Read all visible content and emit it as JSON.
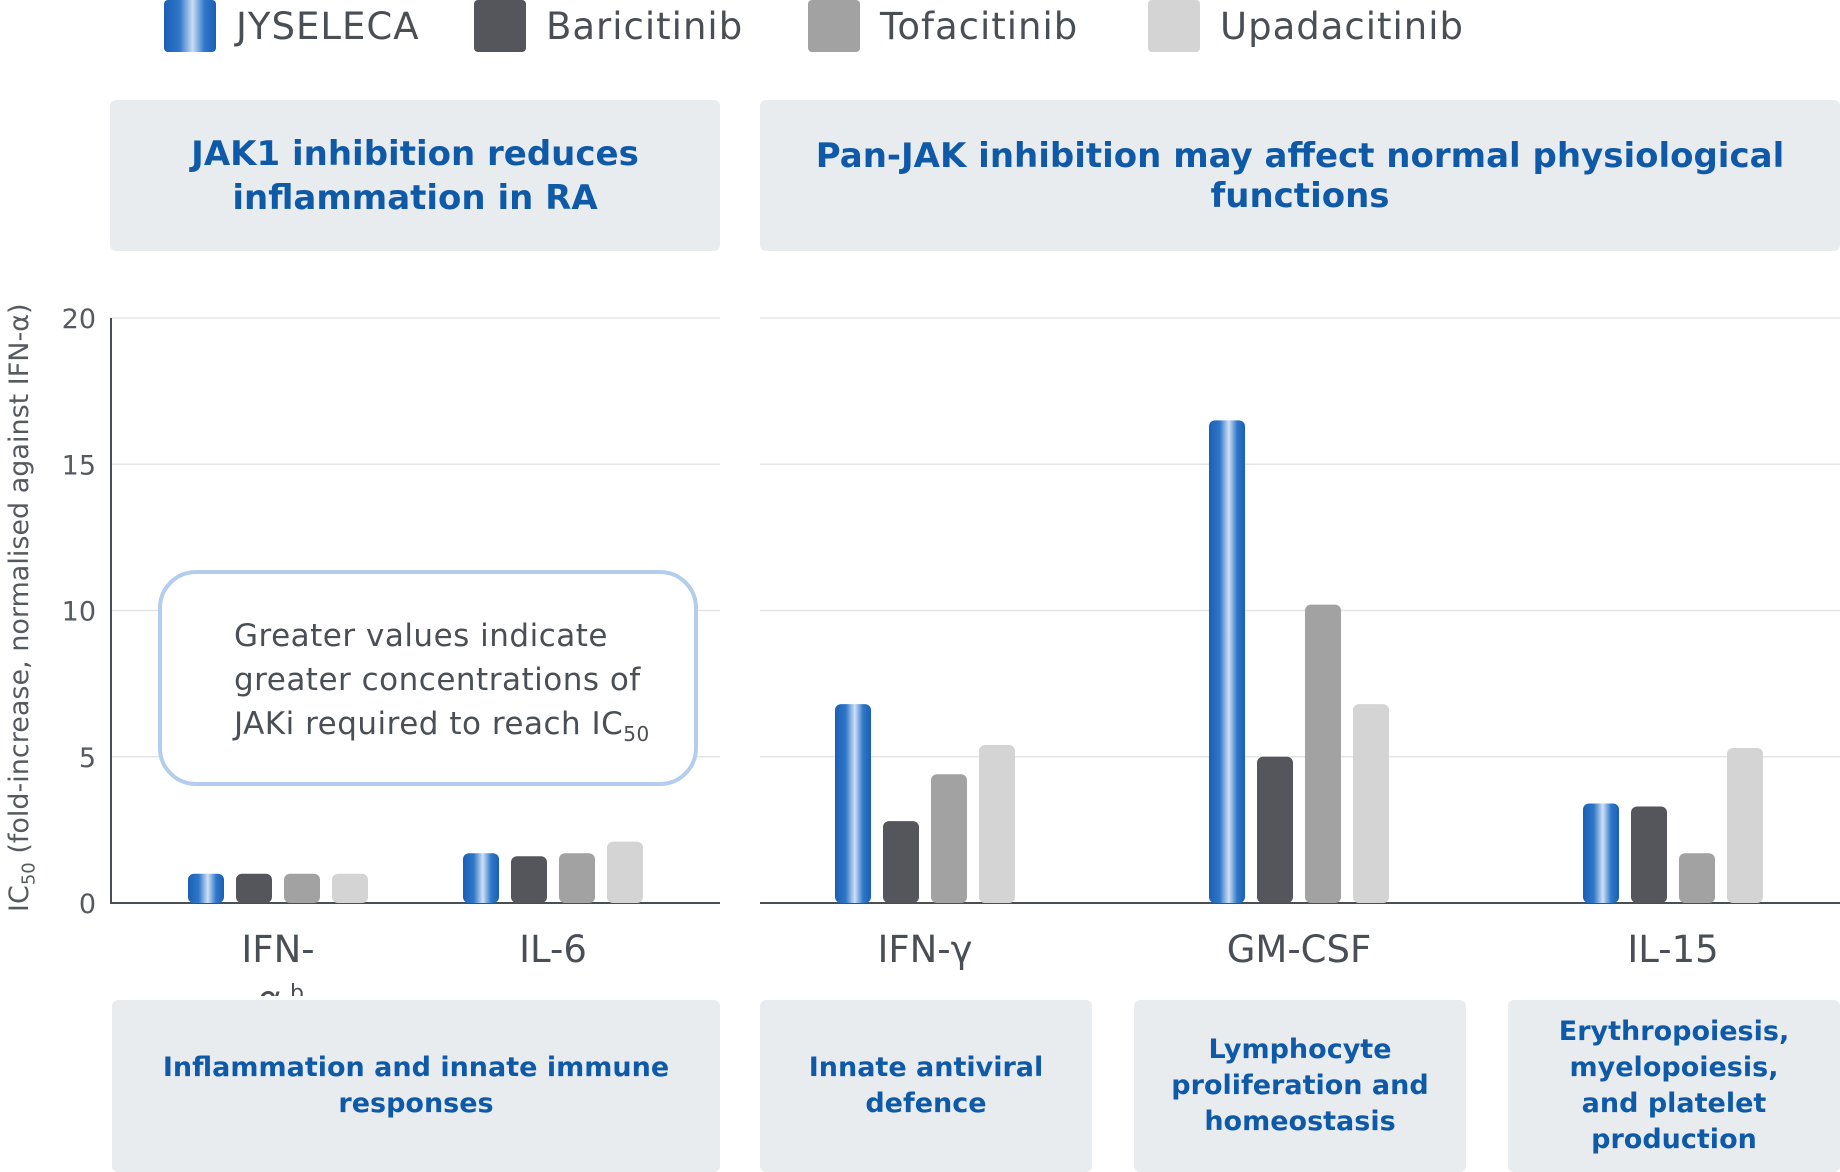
{
  "legend": [
    {
      "label": "JYSELECA",
      "color": "gradient-blue"
    },
    {
      "label": "Baricitinib",
      "color": "#55565b"
    },
    {
      "label": "Tofacitinib",
      "color": "#a2a2a2"
    },
    {
      "label": "Upadacitinib",
      "color": "#d4d4d4"
    }
  ],
  "top_panels": {
    "left": {
      "line1": "JAK1 inhibition reduces",
      "line2": "inflammation in RA"
    },
    "right": {
      "text": "Pan-JAK inhibition may affect normal physiological functions"
    }
  },
  "bottom_panels": {
    "p1": {
      "line1": "Inflammation and innate immune responses"
    },
    "p2": {
      "line1": "Innate antiviral",
      "line2": "defence"
    },
    "p3": {
      "line1": "Lymphocyte",
      "line2": "proliferation and",
      "line3": "homeostasis"
    },
    "p4": {
      "line1": "Erythropoiesis,",
      "line2": "myelopoiesis,",
      "line3": "and platelet production"
    }
  },
  "note": {
    "line1": "Greater values indicate",
    "line2": "greater concentrations of",
    "line3": "JAKi required to reach IC",
    "line3_sub": "50"
  },
  "y_axis_label": {
    "pre": "IC",
    "sub": "50",
    "post": " (fold-increase, normalised against IFN-α)"
  },
  "colors": {
    "baricitinib": "#55565b",
    "tofacitinib": "#a2a2a2",
    "upadacitinib": "#d4d4d4",
    "panel": "#e9ecee",
    "accent": "#0f5aa8"
  },
  "chart_data": {
    "type": "bar",
    "categories": [
      "IFN-α",
      "IL-6",
      "IFN-γ",
      "GM-CSF",
      "IL-15"
    ],
    "category_labels": [
      "IFN-",
      "IL-6",
      "IFN-γ",
      "GM-CSF",
      "IL-15"
    ],
    "category_label_overflow": "α",
    "category_label_sup": "b",
    "series": [
      {
        "name": "JYSELECA",
        "values": [
          1.0,
          1.7,
          6.8,
          16.5,
          3.4
        ]
      },
      {
        "name": "Baricitinib",
        "values": [
          1.0,
          1.6,
          2.8,
          5.0,
          3.3
        ]
      },
      {
        "name": "Tofacitinib",
        "values": [
          1.0,
          1.7,
          4.4,
          10.2,
          1.7
        ]
      },
      {
        "name": "Upadacitinib",
        "values": [
          1.0,
          2.1,
          5.4,
          6.8,
          5.3
        ]
      }
    ],
    "ylim": [
      0,
      20
    ],
    "yticks": [
      0,
      5,
      10,
      15,
      20
    ],
    "grid": true,
    "legend_position": "top"
  }
}
